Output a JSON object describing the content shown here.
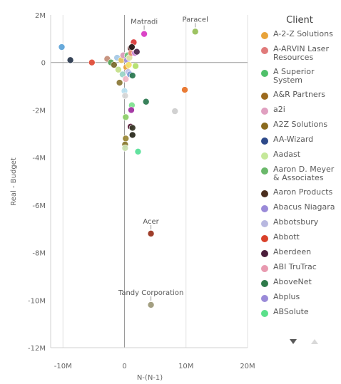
{
  "chart_data": {
    "type": "scatter",
    "xlabel": "N-(N-1)",
    "ylabel": "Real - Budget",
    "xlim": [
      -12,
      20
    ],
    "ylim": [
      -12,
      2
    ],
    "x_ticks": [
      {
        "v": -10,
        "label": "-10M"
      },
      {
        "v": 0,
        "label": "0"
      },
      {
        "v": 10,
        "label": "10M"
      },
      {
        "v": 20,
        "label": "20M"
      }
    ],
    "y_ticks": [
      {
        "v": 2,
        "label": "2M"
      },
      {
        "v": 0,
        "label": "0"
      },
      {
        "v": -2,
        "label": "-2M"
      },
      {
        "v": -4,
        "label": "-4M"
      },
      {
        "v": -6,
        "label": "-6M"
      },
      {
        "v": -8,
        "label": "-8M"
      },
      {
        "v": -10,
        "label": "-10M"
      },
      {
        "v": -12,
        "label": "-12M"
      }
    ],
    "annotations": [
      {
        "label": "Matradi",
        "x": 3.2,
        "y": 1.2
      },
      {
        "label": "Paracel",
        "x": 11.5,
        "y": 1.3
      },
      {
        "label": "Acer",
        "x": 4.3,
        "y": -7.2
      },
      {
        "label": "Tandy Corporation",
        "x": 4.3,
        "y": -10.2
      }
    ],
    "points": [
      {
        "x": -10.2,
        "y": 0.65,
        "color": "#5fa4d8"
      },
      {
        "x": -8.8,
        "y": 0.1,
        "color": "#2b3a4f"
      },
      {
        "x": -5.3,
        "y": 0.0,
        "color": "#e04e3a"
      },
      {
        "x": -2.8,
        "y": 0.15,
        "color": "#c58f7a"
      },
      {
        "x": -2.2,
        "y": 0.0,
        "color": "#5aa457"
      },
      {
        "x": -1.7,
        "y": -0.1,
        "color": "#7a6b2e"
      },
      {
        "x": -1.2,
        "y": 0.2,
        "color": "#a6c9e6"
      },
      {
        "x": -1.0,
        "y": -0.3,
        "color": "#c5df8a"
      },
      {
        "x": -0.8,
        "y": -0.85,
        "color": "#8c7a3a"
      },
      {
        "x": -0.5,
        "y": 0.1,
        "color": "#e6c15a"
      },
      {
        "x": -0.3,
        "y": -0.5,
        "color": "#9ad3c6"
      },
      {
        "x": -0.2,
        "y": 0.3,
        "color": "#d99bb8"
      },
      {
        "x": 0.0,
        "y": -1.2,
        "color": "#b8e0f0"
      },
      {
        "x": 0.1,
        "y": -1.4,
        "color": "#d6d6d6"
      },
      {
        "x": 0.2,
        "y": -0.7,
        "color": "#f0b9c8"
      },
      {
        "x": 0.3,
        "y": -0.2,
        "color": "#e8a33a"
      },
      {
        "x": 0.4,
        "y": 0.1,
        "color": "#9d8ed8"
      },
      {
        "x": 0.5,
        "y": 0.3,
        "color": "#6dc27a"
      },
      {
        "x": 0.6,
        "y": -0.4,
        "color": "#c2c2e8"
      },
      {
        "x": 0.7,
        "y": -0.1,
        "color": "#f2e06a"
      },
      {
        "x": 0.8,
        "y": 0.2,
        "color": "#e0e0a8"
      },
      {
        "x": 0.9,
        "y": -0.5,
        "color": "#7c9bd6"
      },
      {
        "x": 1.0,
        "y": 0.6,
        "color": "#6a2c2c"
      },
      {
        "x": 1.1,
        "y": 0.4,
        "color": "#e8896e"
      },
      {
        "x": 1.3,
        "y": -0.55,
        "color": "#2e7a52"
      },
      {
        "x": 1.5,
        "y": 0.85,
        "color": "#d93a3a"
      },
      {
        "x": 1.7,
        "y": 0.4,
        "color": "#c77ad6"
      },
      {
        "x": 1.8,
        "y": -0.15,
        "color": "#b4e06e"
      },
      {
        "x": 2.0,
        "y": 0.45,
        "color": "#4d2a4d"
      },
      {
        "x": 1.2,
        "y": 0.65,
        "color": "#2a1e1e"
      },
      {
        "x": 3.2,
        "y": 1.2,
        "color": "#d93ac4"
      },
      {
        "x": 11.5,
        "y": 1.3,
        "color": "#98c05a"
      },
      {
        "x": 9.8,
        "y": -1.15,
        "color": "#e8742a"
      },
      {
        "x": 8.2,
        "y": -2.05,
        "color": "#cfcfcf"
      },
      {
        "x": 3.5,
        "y": -1.65,
        "color": "#2e7a52"
      },
      {
        "x": 1.2,
        "y": -1.8,
        "color": "#7fe090"
      },
      {
        "x": 1.1,
        "y": -2.0,
        "color": "#a02ea0"
      },
      {
        "x": 0.2,
        "y": -2.3,
        "color": "#8ed06a"
      },
      {
        "x": 1.0,
        "y": -2.7,
        "color": "#5a1e3a"
      },
      {
        "x": 1.3,
        "y": -2.75,
        "color": "#3a3a2a"
      },
      {
        "x": 1.3,
        "y": -3.05,
        "color": "#2a2a1e"
      },
      {
        "x": 0.2,
        "y": -3.2,
        "color": "#9c8a3a"
      },
      {
        "x": 0.1,
        "y": -3.45,
        "color": "#8a7a30"
      },
      {
        "x": 0.1,
        "y": -3.6,
        "color": "#c9e0b0"
      },
      {
        "x": 2.2,
        "y": -3.75,
        "color": "#5ae09a"
      },
      {
        "x": 4.3,
        "y": -7.2,
        "color": "#9a3420"
      },
      {
        "x": 4.3,
        "y": -10.2,
        "color": "#9e9a7a"
      }
    ],
    "legend": {
      "title": "Client",
      "items": [
        {
          "label": "A-2-Z Solutions",
          "color": "#e8a33a"
        },
        {
          "label": "A-ARVIN Laser Resources",
          "color": "#e07a7a"
        },
        {
          "label": "A Superior System",
          "color": "#4fc06a"
        },
        {
          "label": "A&R Partners",
          "color": "#9c6a1e"
        },
        {
          "label": "a2i",
          "color": "#e0a0c0"
        },
        {
          "label": "A2Z Solutions",
          "color": "#8a6a1e"
        },
        {
          "label": "AA-Wizard",
          "color": "#2e4a8a"
        },
        {
          "label": "Aadast",
          "color": "#c5e89a"
        },
        {
          "label": "Aaron D. Meyer & Associates",
          "color": "#6ab86a"
        },
        {
          "label": "Aaron Products",
          "color": "#4a2e1e"
        },
        {
          "label": "Abacus Niagara",
          "color": "#9a8ad8"
        },
        {
          "label": "Abbotsbury",
          "color": "#b8b8e0"
        },
        {
          "label": "Abbott",
          "color": "#d9402a"
        },
        {
          "label": "Aberdeen",
          "color": "#4a1e3a"
        },
        {
          "label": "ABI TruTrac",
          "color": "#e89ab0"
        },
        {
          "label": "AboveNet",
          "color": "#2e7a4a"
        },
        {
          "label": "Abplus",
          "color": "#9a8ad8"
        },
        {
          "label": "ABSolute",
          "color": "#5ae08a"
        }
      ]
    }
  }
}
